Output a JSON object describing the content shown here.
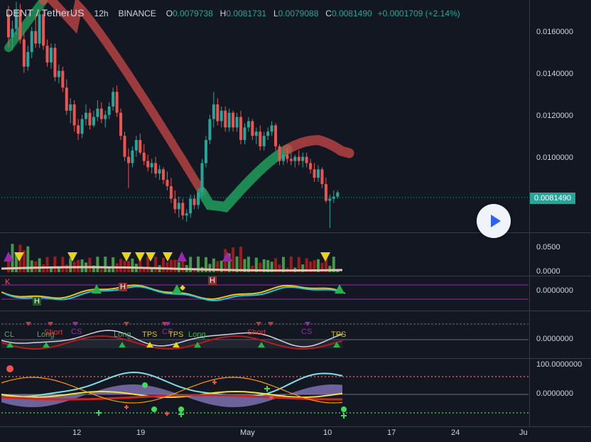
{
  "legend": {
    "symbol": "DENT / TetherUS",
    "interval": "12h",
    "exchange": "BINANCE",
    "open_label": "O",
    "open": "0.0079738",
    "high_label": "H",
    "high": "0.0081731",
    "low_label": "L",
    "low": "0.0079088",
    "close_label": "C",
    "close": "0.0081490",
    "change": "+0.0001709 (+2.14%)"
  },
  "price_axis": {
    "ticks": [
      "0.0160000",
      "0.0140000",
      "0.0120000",
      "0.0100000"
    ],
    "last_price": "0.0081490"
  },
  "indicator_axes": {
    "volume": [
      "0.0500",
      "0.0000"
    ],
    "osc1": [
      "0.0000000"
    ],
    "osc2": [
      "0.0000000"
    ],
    "osc3": [
      "100.0000000",
      "0.0000000"
    ]
  },
  "time_axis": [
    "12",
    "19",
    "May",
    "10",
    "17",
    "24",
    "Ju"
  ],
  "markers": {
    "h": "H",
    "k": "K",
    "cl": "CL",
    "long": "Long",
    "short": "Short",
    "cs": "CS",
    "tps": "TPS"
  },
  "colors": {
    "up": "#26a69a",
    "down": "#ef5350",
    "background": "#131722",
    "ribbon_bull": "#1f9f5a",
    "ribbon_bear": "#c94848",
    "accent": "#2962ff"
  },
  "chart_data": {
    "type": "candlestick",
    "y_range": [
      0.006,
      0.0175
    ],
    "candles": [
      [
        0.0166,
        0.017,
        0.015,
        0.0155
      ],
      [
        0.0155,
        0.0163,
        0.0149,
        0.0159
      ],
      [
        0.0159,
        0.0172,
        0.0156,
        0.0168
      ],
      [
        0.0168,
        0.0171,
        0.0152,
        0.0154
      ],
      [
        0.0154,
        0.0158,
        0.0138,
        0.0141
      ],
      [
        0.0141,
        0.0151,
        0.0139,
        0.0148
      ],
      [
        0.0148,
        0.016,
        0.0145,
        0.0158
      ],
      [
        0.0158,
        0.0166,
        0.015,
        0.0152
      ],
      [
        0.0152,
        0.0168,
        0.015,
        0.0166
      ],
      [
        0.0166,
        0.0169,
        0.0149,
        0.0151
      ],
      [
        0.0151,
        0.0154,
        0.0141,
        0.0143
      ],
      [
        0.0143,
        0.0152,
        0.014,
        0.015
      ],
      [
        0.015,
        0.0152,
        0.0134,
        0.0136
      ],
      [
        0.0136,
        0.0142,
        0.0133,
        0.0139
      ],
      [
        0.0139,
        0.0141,
        0.0129,
        0.0131
      ],
      [
        0.0131,
        0.0135,
        0.0118,
        0.012
      ],
      [
        0.012,
        0.0126,
        0.0114,
        0.0123
      ],
      [
        0.0123,
        0.0125,
        0.011,
        0.0113
      ],
      [
        0.0113,
        0.0116,
        0.0106,
        0.0109
      ],
      [
        0.0109,
        0.0118,
        0.0107,
        0.0116
      ],
      [
        0.0116,
        0.0123,
        0.0113,
        0.0119
      ],
      [
        0.0119,
        0.0121,
        0.0111,
        0.0113
      ],
      [
        0.0113,
        0.012,
        0.0112,
        0.0117
      ],
      [
        0.0117,
        0.0125,
        0.0115,
        0.0121
      ],
      [
        0.0121,
        0.0124,
        0.0114,
        0.0116
      ],
      [
        0.0116,
        0.012,
        0.0112,
        0.0118
      ],
      [
        0.0118,
        0.0124,
        0.0116,
        0.0122
      ],
      [
        0.0122,
        0.0131,
        0.012,
        0.0129
      ],
      [
        0.0129,
        0.0132,
        0.0117,
        0.0119
      ],
      [
        0.0119,
        0.0121,
        0.0106,
        0.0108
      ],
      [
        0.0108,
        0.011,
        0.0096,
        0.0098
      ],
      [
        0.0098,
        0.0102,
        0.0083,
        0.0095
      ],
      [
        0.0095,
        0.0103,
        0.0093,
        0.0101
      ],
      [
        0.0101,
        0.0108,
        0.0098,
        0.0106
      ],
      [
        0.0106,
        0.0109,
        0.0099,
        0.01
      ],
      [
        0.01,
        0.0104,
        0.0094,
        0.0096
      ],
      [
        0.0096,
        0.0099,
        0.0091,
        0.0093
      ],
      [
        0.0093,
        0.0097,
        0.009,
        0.0095
      ],
      [
        0.0095,
        0.0098,
        0.0088,
        0.009
      ],
      [
        0.009,
        0.0094,
        0.0087,
        0.0092
      ],
      [
        0.0092,
        0.0093,
        0.0085,
        0.0087
      ],
      [
        0.0087,
        0.0091,
        0.0082,
        0.0084
      ],
      [
        0.0084,
        0.0088,
        0.0076,
        0.0078
      ],
      [
        0.0078,
        0.0082,
        0.0071,
        0.0073
      ],
      [
        0.0073,
        0.0079,
        0.0069,
        0.0076
      ],
      [
        0.0076,
        0.0078,
        0.0068,
        0.007
      ],
      [
        0.007,
        0.0073,
        0.0067,
        0.0071
      ],
      [
        0.0071,
        0.008,
        0.0069,
        0.0078
      ],
      [
        0.0078,
        0.008,
        0.0073,
        0.0075
      ],
      [
        0.0075,
        0.0083,
        0.0073,
        0.0081
      ],
      [
        0.0081,
        0.0097,
        0.0079,
        0.0095
      ],
      [
        0.0095,
        0.0108,
        0.0093,
        0.0106
      ],
      [
        0.0106,
        0.0118,
        0.0104,
        0.0116
      ],
      [
        0.0116,
        0.0129,
        0.0112,
        0.0123
      ],
      [
        0.0123,
        0.0126,
        0.0113,
        0.0115
      ],
      [
        0.0115,
        0.0122,
        0.0112,
        0.012
      ],
      [
        0.012,
        0.0122,
        0.011,
        0.0112
      ],
      [
        0.0112,
        0.0121,
        0.011,
        0.0119
      ],
      [
        0.0119,
        0.012,
        0.011,
        0.0112
      ],
      [
        0.0112,
        0.0119,
        0.011,
        0.0117
      ],
      [
        0.0117,
        0.012,
        0.0104,
        0.0106
      ],
      [
        0.0106,
        0.0114,
        0.0104,
        0.0112
      ],
      [
        0.0112,
        0.0117,
        0.011,
        0.0115
      ],
      [
        0.0115,
        0.0116,
        0.0106,
        0.0108
      ],
      [
        0.0108,
        0.0112,
        0.0104,
        0.011
      ],
      [
        0.011,
        0.0113,
        0.0101,
        0.0103
      ],
      [
        0.0103,
        0.011,
        0.0101,
        0.0108
      ],
      [
        0.0108,
        0.0112,
        0.0106,
        0.011
      ],
      [
        0.011,
        0.0115,
        0.0108,
        0.0113
      ],
      [
        0.0113,
        0.0114,
        0.0101,
        0.0103
      ],
      [
        0.0103,
        0.0104,
        0.0094,
        0.0096
      ],
      [
        0.0096,
        0.0101,
        0.0094,
        0.0099
      ],
      [
        0.0099,
        0.0102,
        0.0095,
        0.0097
      ],
      [
        0.0097,
        0.01,
        0.0094,
        0.0096
      ],
      [
        0.0096,
        0.0099,
        0.0093,
        0.0098
      ],
      [
        0.0098,
        0.0101,
        0.0094,
        0.0096
      ],
      [
        0.0096,
        0.01,
        0.0093,
        0.0098
      ],
      [
        0.0098,
        0.01,
        0.0093,
        0.0095
      ],
      [
        0.0095,
        0.0097,
        0.009,
        0.0092
      ],
      [
        0.0092,
        0.0095,
        0.0086,
        0.0088
      ],
      [
        0.0088,
        0.0094,
        0.0086,
        0.0092
      ],
      [
        0.0092,
        0.0093,
        0.0083,
        0.0085
      ],
      [
        0.0085,
        0.0088,
        0.0076,
        0.0077
      ],
      [
        0.0077,
        0.008,
        0.0064,
        0.0078
      ],
      [
        0.0078,
        0.0082,
        0.0076,
        0.0079
      ],
      [
        0.0079,
        0.0082,
        0.0078,
        0.0081
      ]
    ]
  }
}
